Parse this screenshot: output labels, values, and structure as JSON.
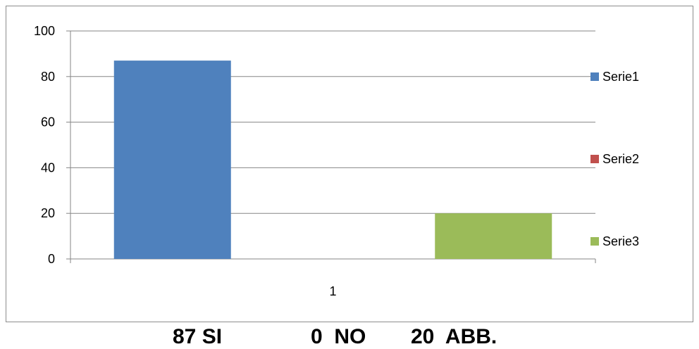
{
  "chart_data": {
    "type": "bar",
    "categories": [
      "1"
    ],
    "series": [
      {
        "name": "Serie1",
        "values": [
          87
        ],
        "color": "#4f81bd"
      },
      {
        "name": "Serie2",
        "values": [
          0
        ],
        "color": "#c0504d"
      },
      {
        "name": "Serie3",
        "values": [
          20
        ],
        "color": "#9bbb59"
      }
    ],
    "ylim": [
      0,
      100
    ],
    "yticks": [
      0,
      20,
      40,
      60,
      80,
      100
    ],
    "grid": true,
    "legend_position": "right",
    "title": "",
    "xlabel": "",
    "ylabel": ""
  },
  "caption": {
    "si": "87 SI",
    "no": "0  NO",
    "abb": "20  ABB."
  }
}
